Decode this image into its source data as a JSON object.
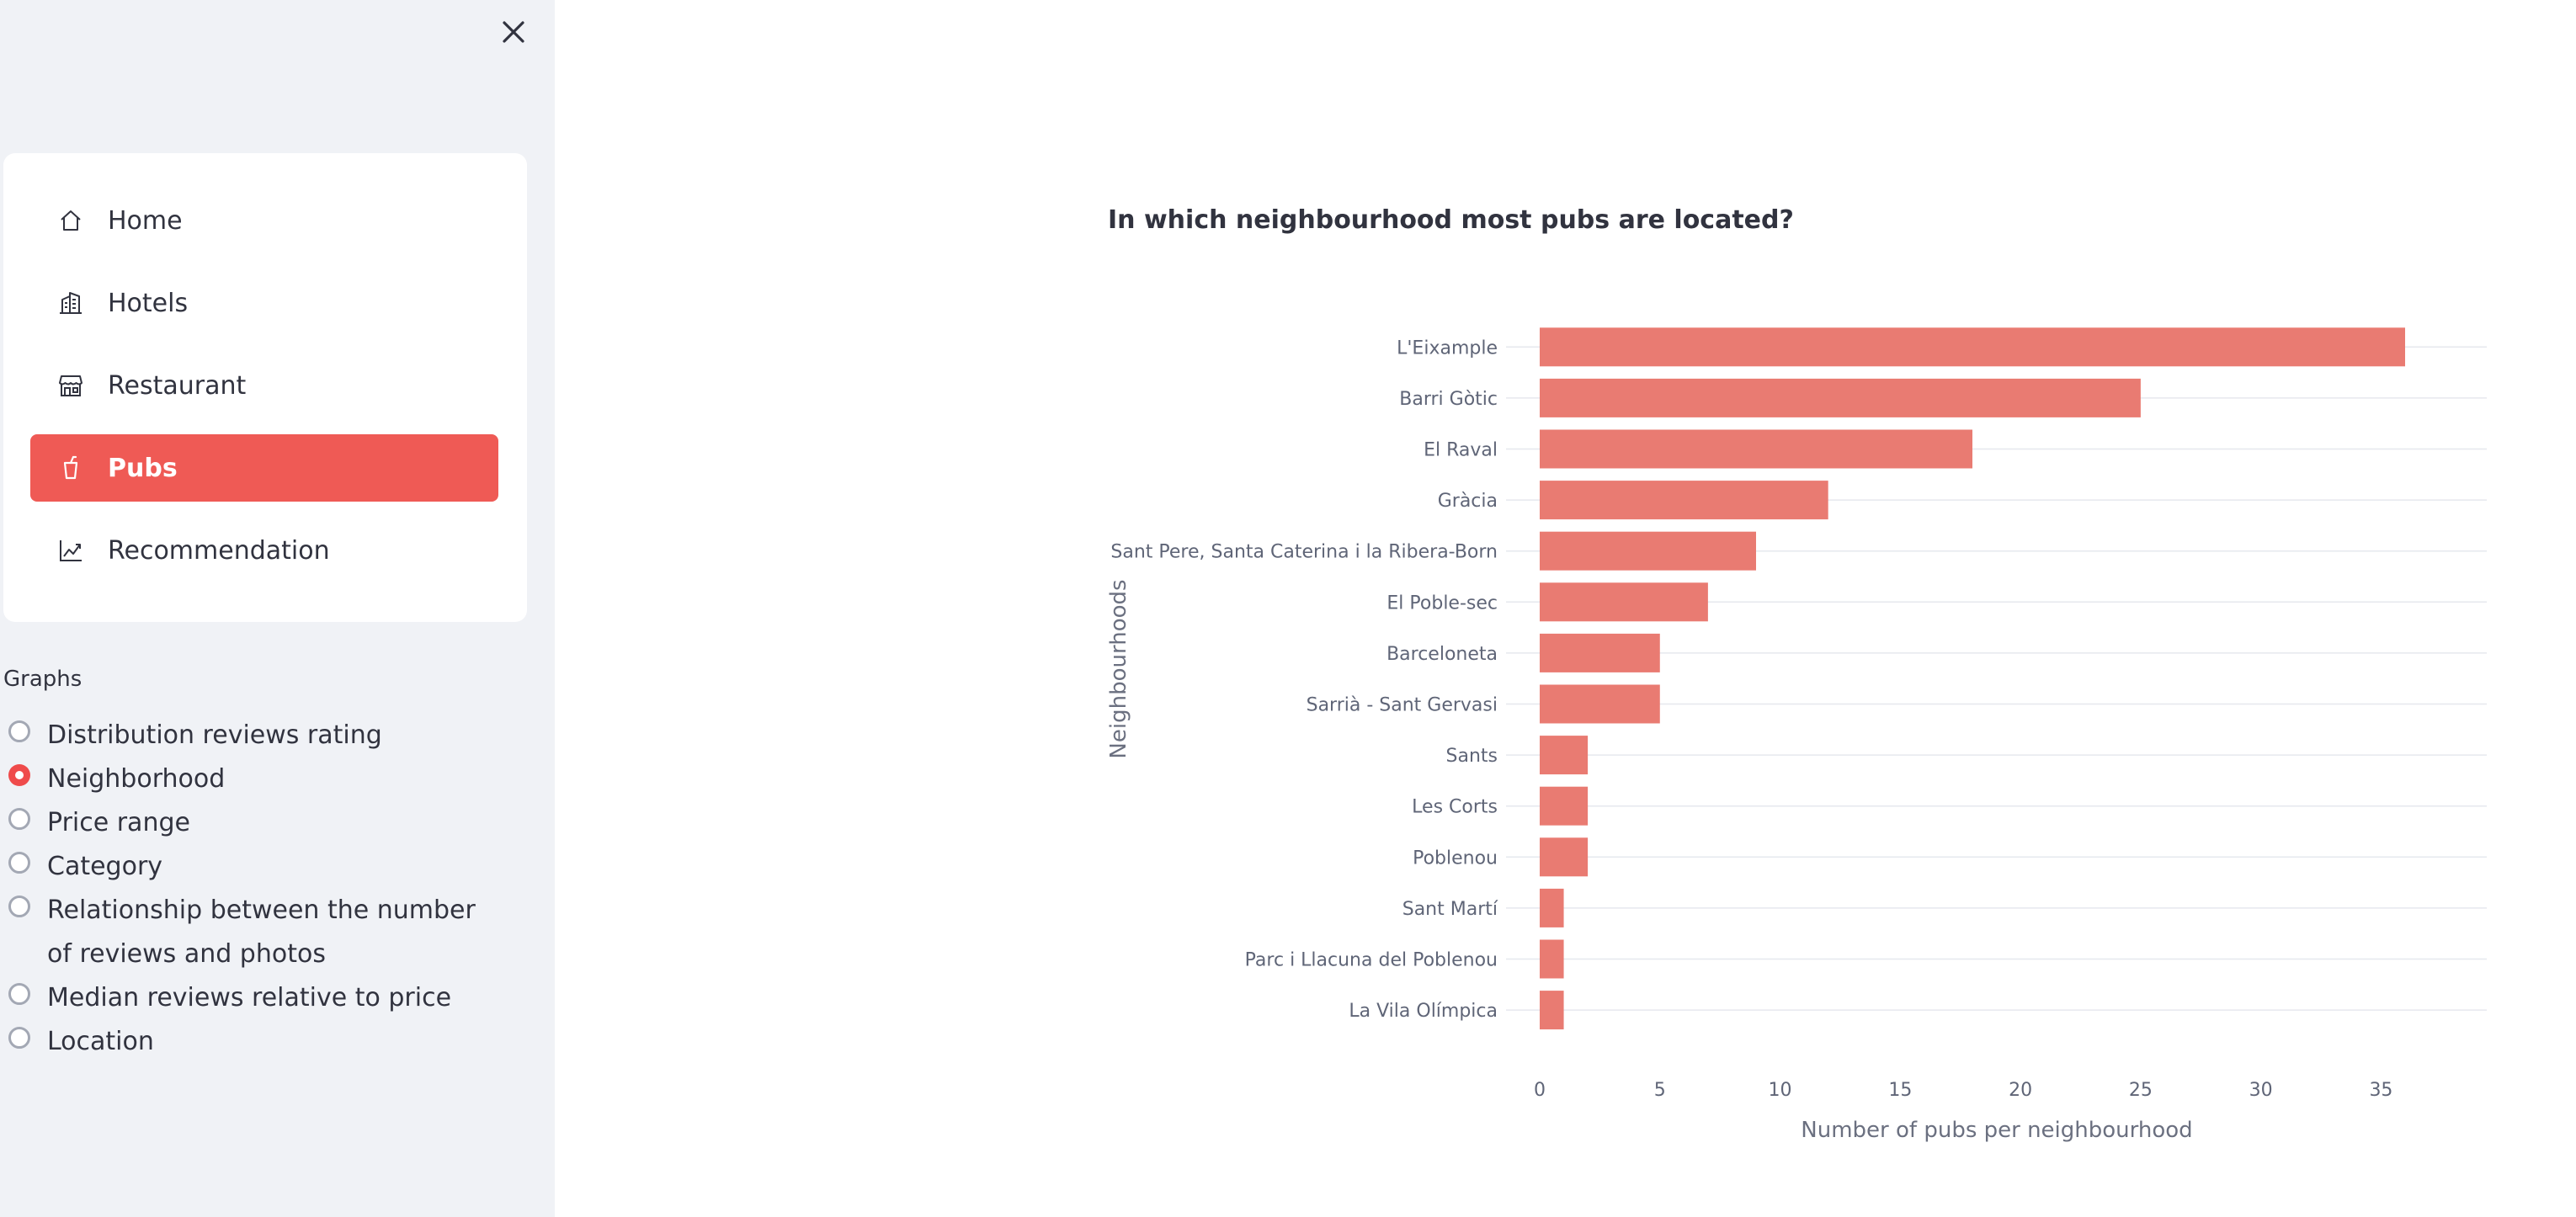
{
  "sidebar": {
    "menu": [
      {
        "label": "Home",
        "icon": "house-icon",
        "active": false
      },
      {
        "label": "Hotels",
        "icon": "building-icon",
        "active": false
      },
      {
        "label": "Restaurant",
        "icon": "shop-icon",
        "active": false
      },
      {
        "label": "Pubs",
        "icon": "cup-icon",
        "active": true
      },
      {
        "label": "Recommendation",
        "icon": "graph-up-icon",
        "active": false
      }
    ],
    "graphs_label": "Graphs",
    "graph_options": [
      "Distribution reviews rating",
      "Neighborhood",
      "Price range",
      "Category",
      "Relationship between the number of reviews and photos",
      "Median reviews relative to price",
      "Location"
    ],
    "selected_option": "Neighborhood",
    "colors": {
      "accent": "#ef5a55",
      "background": "#f0f2f6"
    }
  },
  "main": {
    "chart_title": "In which neighbourhood most pubs are located?"
  },
  "chart_data": {
    "type": "bar",
    "orientation": "horizontal",
    "categories": [
      "L'Eixample",
      "Barri Gòtic",
      "El Raval",
      "Gràcia",
      "Sant Pere, Santa Caterina i la Ribera-Born",
      "El Poble-sec",
      "Barceloneta",
      "Sarrià - Sant Gervasi",
      "Sants",
      "Les Corts",
      "Poblenou",
      "Sant Martí",
      "Parc i Llacuna del Poblenou",
      "La Vila Olímpica"
    ],
    "values": [
      36,
      25,
      18,
      12,
      9,
      7,
      5,
      5,
      2,
      2,
      2,
      1,
      1,
      1
    ],
    "xlabel": "Number of pubs per neighbourhood",
    "ylabel": "Neighbourhoods",
    "xlim": [
      0,
      38
    ],
    "xticks": [
      0,
      5,
      10,
      15,
      20,
      25,
      30,
      35
    ],
    "bar_color": "#e97b72",
    "grid": true
  }
}
